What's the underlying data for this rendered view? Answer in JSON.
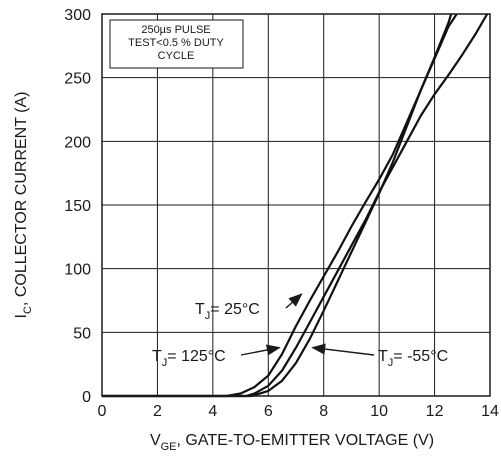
{
  "chart_data": {
    "type": "line",
    "title": "",
    "xlabel": {
      "main": "V",
      "sub": "GE",
      "rest": ", GATE-TO-EMITTER VOLTAGE (V)"
    },
    "ylabel": {
      "main": "I",
      "sub": "C",
      "rest": ", COLLECTOR CURRENT (A)"
    },
    "xlim": [
      0,
      14
    ],
    "ylim": [
      0,
      300
    ],
    "x_ticks": [
      "0",
      "2",
      "4",
      "6",
      "8",
      "10",
      "12",
      "14"
    ],
    "y_ticks": [
      "0",
      "50",
      "100",
      "150",
      "200",
      "250",
      "300"
    ],
    "grid": true,
    "legend": "none",
    "note_box": {
      "lines": [
        "250µs PULSE",
        "TEST<0.5 % DUTY",
        "CYCLE"
      ],
      "placement": "top-left"
    },
    "series": [
      {
        "name": "",
        "label": {
          "main": "T",
          "sub": "J",
          "rest": "= 25°C"
        },
        "x": [
          4.5,
          5.0,
          5.5,
          6.0,
          6.5,
          7.0,
          7.5,
          8.0,
          8.5,
          9.0,
          9.5,
          10.0,
          10.5,
          11.0,
          11.5,
          12.0,
          12.5,
          12.8
        ],
        "y": [
          0,
          2,
          7,
          16,
          33,
          55,
          75,
          94,
          113,
          133,
          152,
          170,
          190,
          215,
          240,
          265,
          290,
          300
        ]
      },
      {
        "name": "",
        "label": {
          "main": "T",
          "sub": "J",
          "rest": "= 125°C"
        },
        "x": [
          5.2,
          5.5,
          6.0,
          6.5,
          7.0,
          7.5,
          8.0,
          8.5,
          9.0,
          9.5,
          10.0,
          10.5,
          11.0,
          11.5,
          12.0,
          12.5,
          13.0,
          13.5,
          13.9
        ],
        "y": [
          0,
          2,
          8,
          20,
          38,
          58,
          78,
          98,
          118,
          138,
          160,
          180,
          200,
          220,
          237,
          252,
          268,
          285,
          300
        ]
      },
      {
        "name": "",
        "label": {
          "main": "T",
          "sub": "J",
          "rest": "= -55°C"
        },
        "x": [
          5.4,
          6.0,
          6.5,
          7.0,
          7.5,
          8.0,
          8.5,
          9.0,
          9.5,
          10.0,
          10.5,
          11.0,
          11.5,
          12.0,
          12.5,
          12.6
        ],
        "y": [
          0,
          4,
          12,
          26,
          45,
          67,
          90,
          113,
          136,
          159,
          184,
          212,
          240,
          266,
          293,
          300
        ]
      }
    ],
    "annotations": [
      {
        "series": 0,
        "arrow_to": [
          7.2,
          80
        ]
      },
      {
        "series": 1,
        "arrow_to": [
          6.4,
          38
        ]
      },
      {
        "series": 2,
        "arrow_to": [
          7.6,
          38
        ]
      }
    ]
  }
}
